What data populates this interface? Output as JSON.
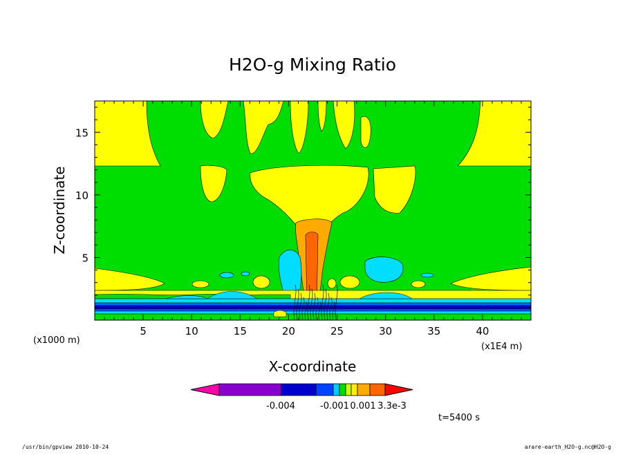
{
  "chart_data": {
    "type": "contour",
    "title": "H2O-g Mixing Ratio",
    "xlabel": "X-coordinate",
    "ylabel": "Z-coordinate",
    "x_units_label": "(x1E4 m)",
    "y_units_label": "(x1000 m)",
    "xlim": [
      0,
      45
    ],
    "ylim": [
      0,
      17.5
    ],
    "xticks": [
      5,
      10,
      15,
      20,
      25,
      30,
      35,
      40
    ],
    "yticks": [
      5,
      10,
      15
    ],
    "time_label": "t=5400 s",
    "colorbar": {
      "colors": [
        "#ff00aa",
        "#8800cc",
        "#0000cc",
        "#0044ff",
        "#00ccff",
        "#00dd00",
        "#ccff00",
        "#ffee00",
        "#ffaa00",
        "#ff6600",
        "#ff0000"
      ],
      "tick_labels": [
        "-0.004",
        "-0.001",
        "0.001",
        "3.3e-3"
      ]
    },
    "background_color": "#00dd00"
  },
  "footer": {
    "left": "/usr/bin/gpview   2010-10-24",
    "right": "arare-earth_H2O-g.nc@H2O-g"
  }
}
